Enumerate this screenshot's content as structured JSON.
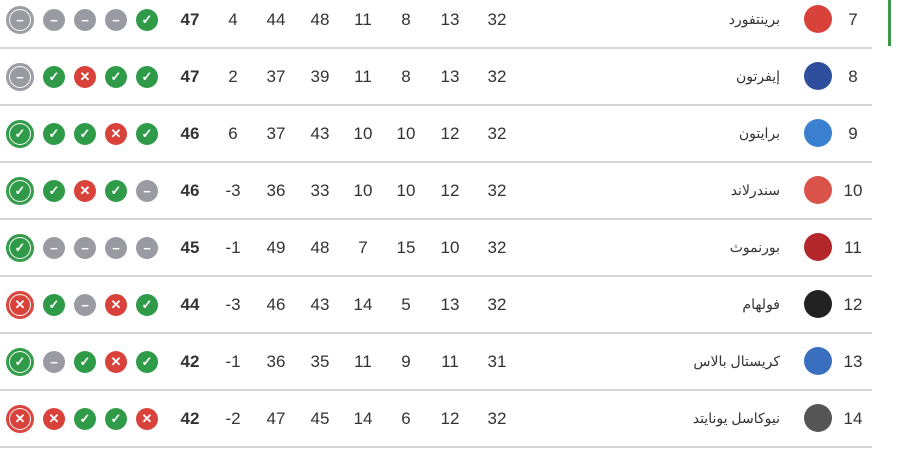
{
  "colors": {
    "win": "#2f9a47",
    "loss": "#d8423a",
    "draw": "#9a9aa3",
    "highlight": "#3a9a4a"
  },
  "form_icons": {
    "W": "check-icon",
    "L": "cross-icon",
    "D": "minus-icon"
  },
  "rows": [
    {
      "pos": "7",
      "team": "برينتفورد",
      "crest": "#d8423a",
      "played": "32",
      "won": "13",
      "drawn": "8",
      "lost": "11",
      "gf": "48",
      "ga": "44",
      "gd": "4",
      "pts": "47",
      "form": [
        "D",
        "D",
        "D",
        "D",
        "W"
      ]
    },
    {
      "pos": "8",
      "team": "إيفرتون",
      "crest": "#2f4f9e",
      "played": "32",
      "won": "13",
      "drawn": "8",
      "lost": "11",
      "gf": "39",
      "ga": "37",
      "gd": "2",
      "pts": "47",
      "form": [
        "D",
        "W",
        "L",
        "W",
        "W"
      ]
    },
    {
      "pos": "9",
      "team": "برايتون",
      "crest": "#3a7fd0",
      "played": "32",
      "won": "12",
      "drawn": "10",
      "lost": "10",
      "gf": "43",
      "ga": "37",
      "gd": "6",
      "pts": "46",
      "form": [
        "W",
        "W",
        "W",
        "L",
        "W"
      ]
    },
    {
      "pos": "10",
      "team": "سندرلاند",
      "crest": "#d9534a",
      "played": "32",
      "won": "12",
      "drawn": "10",
      "lost": "10",
      "gf": "33",
      "ga": "36",
      "gd": "-3",
      "pts": "46",
      "form": [
        "W",
        "W",
        "L",
        "W",
        "D"
      ]
    },
    {
      "pos": "11",
      "team": "بورنموث",
      "crest": "#b3262a",
      "played": "32",
      "won": "10",
      "drawn": "15",
      "lost": "7",
      "gf": "48",
      "ga": "49",
      "gd": "-1",
      "pts": "45",
      "form": [
        "W",
        "D",
        "D",
        "D",
        "D"
      ]
    },
    {
      "pos": "12",
      "team": "فولهام",
      "crest": "#222222",
      "played": "32",
      "won": "13",
      "drawn": "5",
      "lost": "14",
      "gf": "43",
      "ga": "46",
      "gd": "-3",
      "pts": "44",
      "form": [
        "L",
        "W",
        "D",
        "L",
        "W"
      ]
    },
    {
      "pos": "13",
      "team": "كريستال بالاس",
      "crest": "#3a6fc0",
      "played": "31",
      "won": "11",
      "drawn": "9",
      "lost": "11",
      "gf": "35",
      "ga": "36",
      "gd": "-1",
      "pts": "42",
      "form": [
        "W",
        "D",
        "W",
        "L",
        "W"
      ]
    },
    {
      "pos": "14",
      "team": "نيوكاسل يونايتد",
      "crest": "#555555",
      "played": "32",
      "won": "12",
      "drawn": "6",
      "lost": "14",
      "gf": "45",
      "ga": "47",
      "gd": "-2",
      "pts": "42",
      "form": [
        "L",
        "L",
        "W",
        "W",
        "L"
      ]
    }
  ]
}
